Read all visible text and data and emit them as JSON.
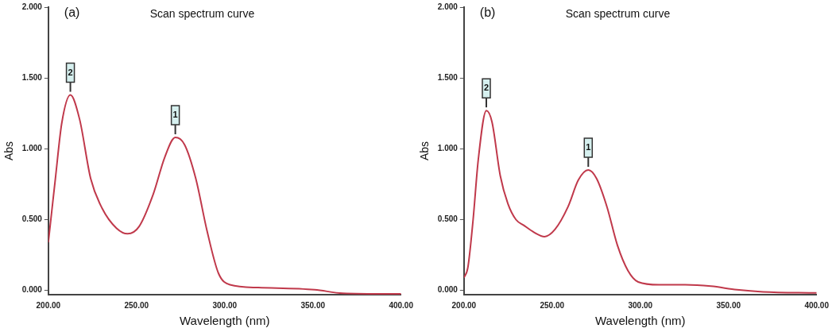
{
  "chart_data": [
    {
      "type": "line",
      "title": "Scan spectrum curve",
      "xlabel": "Wavelength (nm)",
      "ylabel": "Abs",
      "annotations": [
        "(a)",
        {
          "text": "2",
          "x": 212.5,
          "y": 1.38
        },
        {
          "text": "1",
          "x": 272,
          "y": 1.08
        }
      ],
      "series": [
        {
          "color": "#c0394b",
          "x": [
            200,
            204,
            207.6,
            212.5,
            217.7,
            224,
            230.5,
            238.6,
            245,
            251.4,
            259.5,
            266,
            272,
            277.2,
            283.6,
            290,
            296.5,
            303,
            319,
            351,
            367,
            400
          ],
          "values": [
            0.34,
            0.79,
            1.18,
            1.38,
            1.21,
            0.79,
            0.58,
            0.44,
            0.4,
            0.45,
            0.68,
            0.94,
            1.08,
            1.03,
            0.79,
            0.42,
            0.12,
            0.04,
            0.02,
            0.005,
            -0.02,
            -0.025
          ]
        }
      ],
      "xlim": [
        200,
        400
      ],
      "ylim": [
        -0.03,
        2
      ],
      "marker": "none",
      "line_style": "solid",
      "grid": false,
      "legend": false,
      "xticks": [
        {
          "value": 200,
          "label": "200.00"
        },
        {
          "value": 250,
          "label": "250.00"
        },
        {
          "value": 300,
          "label": "300.00"
        },
        {
          "value": 350,
          "label": "350.00"
        },
        {
          "value": 400,
          "label": "400.00"
        }
      ],
      "yticks": [
        {
          "value": 0,
          "label": "0.000"
        },
        {
          "value": 0.5,
          "label": "0.500"
        },
        {
          "value": 1,
          "label": "1.000"
        },
        {
          "value": 1.5,
          "label": "1.500"
        },
        {
          "value": 2,
          "label": "2.000"
        }
      ]
    },
    {
      "type": "line",
      "title": "Scan spectrum curve",
      "xlabel": "Wavelength (nm)",
      "ylabel": "Abs",
      "annotations": [
        "(b)",
        {
          "text": "2",
          "x": 212.7,
          "y": 1.27
        },
        {
          "text": "1",
          "x": 270.5,
          "y": 0.85
        }
      ],
      "series": [
        {
          "color": "#c0394b",
          "x": [
            200,
            202.2,
            205.2,
            208.1,
            212.7,
            215.9,
            220.6,
            225,
            229.5,
            233.9,
            239.8,
            245.7,
            251.6,
            259,
            264.9,
            270.5,
            275.2,
            281.1,
            287,
            293,
            298.8,
            310.6,
            325.4,
            340,
            354.8,
            369.6,
            400
          ],
          "values": [
            0.09,
            0.16,
            0.5,
            0.92,
            1.27,
            1.19,
            0.81,
            0.61,
            0.5,
            0.46,
            0.41,
            0.38,
            0.43,
            0.59,
            0.78,
            0.85,
            0.79,
            0.59,
            0.32,
            0.14,
            0.06,
            0.04,
            0.04,
            0.03,
            0.005,
            -0.01,
            -0.018
          ]
        }
      ],
      "xlim": [
        200,
        400
      ],
      "ylim": [
        -0.03,
        2
      ],
      "marker": "none",
      "line_style": "solid",
      "grid": false,
      "legend": false,
      "xticks": [
        {
          "value": 200,
          "label": "200.00"
        },
        {
          "value": 250,
          "label": "250.00"
        },
        {
          "value": 300,
          "label": "300.00"
        },
        {
          "value": 350,
          "label": "350.00"
        },
        {
          "value": 400,
          "label": "400.00"
        }
      ],
      "yticks": [
        {
          "value": 0,
          "label": "0.000"
        },
        {
          "value": 0.5,
          "label": "0.500"
        },
        {
          "value": 1,
          "label": "1.000"
        },
        {
          "value": 1.5,
          "label": "1.500"
        },
        {
          "value": 2,
          "label": "2.000"
        }
      ]
    }
  ]
}
